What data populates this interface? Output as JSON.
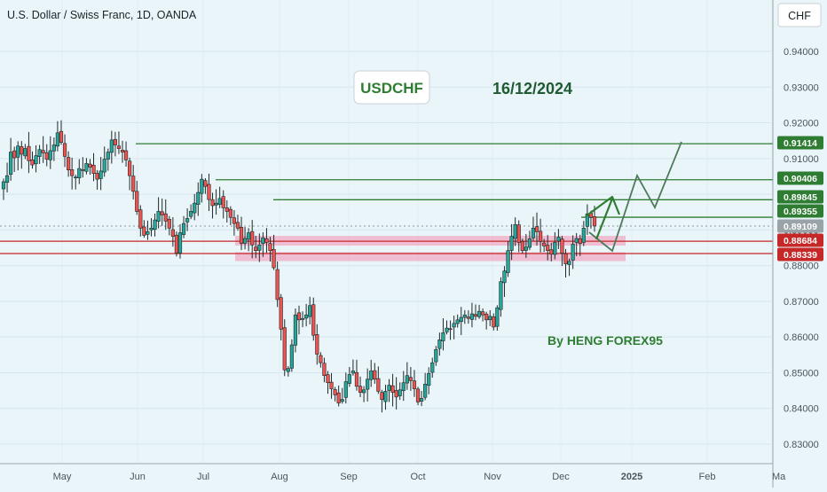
{
  "header": {
    "title": "U.S. Dollar / Swiss Franc, 1D, OANDA"
  },
  "currency_badge": "CHF",
  "annotations": {
    "symbol": "USDCHF",
    "date": "16/12/2024",
    "author": "By HENG FOREX95"
  },
  "colors": {
    "up": "#26a69a",
    "down": "#ef5350",
    "wick": "#1f2a2a",
    "resistance": "#2e7d32",
    "support": "#c62828",
    "zone": "#f48fb1",
    "background": "#eaf5fa"
  },
  "chart_data": {
    "type": "candlestick",
    "title": "U.S. Dollar / Swiss Franc, 1D, OANDA",
    "ylabel": "CHF",
    "ylim": [
      0.8235,
      0.952
    ],
    "y_ticks": [
      "0.94000",
      "0.93000",
      "0.92000",
      "0.91000",
      "0.90000",
      "0.89000",
      "0.88000",
      "0.87000",
      "0.86000",
      "0.85000",
      "0.84000",
      "0.83000"
    ],
    "x_ticks": [
      "May",
      "Jun",
      "Jul",
      "Aug",
      "Sep",
      "Oct",
      "Nov",
      "Dec",
      "2025",
      "Feb",
      "Ma"
    ],
    "price_labels": [
      {
        "text": "0.91414",
        "value": 0.91414,
        "kind": "resistance"
      },
      {
        "text": "0.90406",
        "value": 0.90406,
        "kind": "resistance"
      },
      {
        "text": "0.89845",
        "value": 0.89845,
        "kind": "resistance"
      },
      {
        "text": "0.89355",
        "value": 0.89355,
        "kind": "resistance"
      },
      {
        "text": "0.89109",
        "value": 0.89109,
        "kind": "current"
      },
      {
        "text": "0.88684",
        "value": 0.88684,
        "kind": "support"
      },
      {
        "text": "0.88339",
        "value": 0.88339,
        "kind": "support"
      }
    ],
    "support_zone": [
      0.8825,
      0.8876
    ],
    "closes": [
      0.9035,
      0.9052,
      0.9118,
      0.9102,
      0.9135,
      0.9112,
      0.9128,
      0.9094,
      0.9082,
      0.9108,
      0.9125,
      0.9116,
      0.9098,
      0.9122,
      0.9138,
      0.9172,
      0.9145,
      0.9106,
      0.9068,
      0.9052,
      0.9048,
      0.9072,
      0.9068,
      0.9086,
      0.9076,
      0.9058,
      0.9042,
      0.9065,
      0.9098,
      0.9118,
      0.9152,
      0.9138,
      0.9128,
      0.9118,
      0.9096,
      0.9052,
      0.9008,
      0.8952,
      0.8905,
      0.8885,
      0.8895,
      0.8905,
      0.8928,
      0.8952,
      0.8942,
      0.8925,
      0.8905,
      0.8882,
      0.8835,
      0.8892,
      0.8918,
      0.8932,
      0.8952,
      0.8975,
      0.9005,
      0.9042,
      0.9022,
      0.8985,
      0.8968,
      0.8975,
      0.8988,
      0.8962,
      0.8952,
      0.8935,
      0.8918,
      0.8905,
      0.8862,
      0.8876,
      0.8892,
      0.8858,
      0.8842,
      0.8858,
      0.8878,
      0.8865,
      0.8842,
      0.8794,
      0.8705,
      0.8622,
      0.8508,
      0.8512,
      0.8578,
      0.8662,
      0.8648,
      0.8652,
      0.8662,
      0.8688,
      0.8605,
      0.8552,
      0.8528,
      0.8492,
      0.8472,
      0.8455,
      0.8438,
      0.8415,
      0.8425,
      0.8475,
      0.8495,
      0.8505,
      0.8462,
      0.8445,
      0.8452,
      0.8482,
      0.8505,
      0.8482,
      0.8448,
      0.8425,
      0.8448,
      0.8465,
      0.8445,
      0.8432,
      0.8452,
      0.8472,
      0.8492,
      0.8478,
      0.8455,
      0.8418,
      0.8428,
      0.8468,
      0.8498,
      0.8528,
      0.8565,
      0.8592,
      0.8612,
      0.8625,
      0.8622,
      0.8638,
      0.8648,
      0.8655,
      0.8662,
      0.8652,
      0.8665,
      0.8658,
      0.8672,
      0.8662,
      0.8648,
      0.8658,
      0.8628,
      0.8682,
      0.8755,
      0.8785,
      0.8842,
      0.8882,
      0.8915,
      0.8865,
      0.8842,
      0.8852,
      0.8875,
      0.8905,
      0.8895,
      0.8868,
      0.8855,
      0.8842,
      0.8832,
      0.8865,
      0.888,
      0.8835,
      0.8805,
      0.8812,
      0.886,
      0.8876,
      0.8862,
      0.8905,
      0.8945,
      0.8935,
      0.8911
    ]
  }
}
